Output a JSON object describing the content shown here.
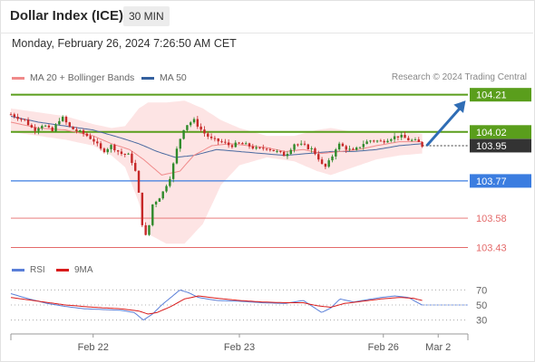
{
  "header": {
    "title": "Dollar Index (ICE)",
    "timeframe": "30 MIN",
    "datetime": "Monday, February 26, 2024 7:26:50 AM CET",
    "credit": "Research © 2024 Trading Central"
  },
  "legend": {
    "ma20": "MA 20 + Bollinger Bands",
    "ma50": "MA 50",
    "rsi": "RSI",
    "rsi_ma": "9MA"
  },
  "colors": {
    "resistance": "#5a9e1c",
    "support": "#3b7de0",
    "level_minor": "#e46a6a",
    "current": "#333333",
    "bollinger_fill": "#fde4e4",
    "ma20": "#f08a8a",
    "ma50": "#4a6aa0",
    "bull": "#2f8a2a",
    "bear": "#c62828",
    "rsi": "#5a7fd8",
    "rsi_ma": "#d81b1b",
    "arrow": "#2f6db5"
  },
  "chart_data": [
    {
      "type": "candlestick",
      "ylim": [
        103.4,
        104.25
      ],
      "xlim": [
        0,
        100
      ],
      "x_ticks": [
        {
          "x": 18,
          "label": "Feb 22"
        },
        {
          "x": 50,
          "label": "Feb 23"
        },
        {
          "x": 81.5,
          "label": "Feb 26"
        },
        {
          "x": 93.5,
          "label": "Mar 2"
        }
      ],
      "levels": [
        {
          "value": 104.21,
          "label": "104.21",
          "kind": "resistance"
        },
        {
          "value": 104.02,
          "label": "104.02",
          "kind": "resistance"
        },
        {
          "value": 103.95,
          "label": "103.95",
          "kind": "current"
        },
        {
          "value": 103.77,
          "label": "103.77",
          "kind": "support"
        },
        {
          "value": 103.58,
          "label": "103.58",
          "kind": "minor"
        },
        {
          "value": 103.43,
          "label": "103.43",
          "kind": "minor"
        }
      ],
      "forecast_arrow": {
        "x0": 91,
        "y0": 103.95,
        "x1": 99.5,
        "y1": 104.18
      },
      "ohlc_anchors": [
        [
          0,
          104.11
        ],
        [
          3,
          104.08
        ],
        [
          5,
          104.03
        ],
        [
          7,
          104.06
        ],
        [
          9,
          104.02
        ],
        [
          11,
          104.1
        ],
        [
          13,
          104.04
        ],
        [
          16,
          104.01
        ],
        [
          18,
          103.98
        ],
        [
          20,
          103.92
        ],
        [
          22,
          103.95
        ],
        [
          24,
          103.91
        ],
        [
          26,
          103.9
        ],
        [
          27.5,
          103.8
        ],
        [
          29,
          103.5
        ],
        [
          29.8,
          103.48
        ],
        [
          31,
          103.65
        ],
        [
          33,
          103.7
        ],
        [
          35,
          103.8
        ],
        [
          36.5,
          103.95
        ],
        [
          38,
          104.05
        ],
        [
          40,
          104.08
        ],
        [
          42,
          104.02
        ],
        [
          44,
          103.98
        ],
        [
          46,
          103.97
        ],
        [
          48,
          103.95
        ],
        [
          50,
          103.96
        ],
        [
          52,
          103.95
        ],
        [
          54,
          103.93
        ],
        [
          56,
          103.94
        ],
        [
          58,
          103.92
        ],
        [
          60,
          103.9
        ],
        [
          62,
          103.96
        ],
        [
          64,
          103.95
        ],
        [
          66,
          103.93
        ],
        [
          67.5,
          103.88
        ],
        [
          68.5,
          103.83
        ],
        [
          70,
          103.88
        ],
        [
          71.5,
          103.96
        ],
        [
          73,
          103.94
        ],
        [
          75,
          103.92
        ],
        [
          77,
          103.96
        ],
        [
          79,
          103.98
        ],
        [
          81,
          103.97
        ],
        [
          83,
          103.99
        ],
        [
          85,
          104.0
        ],
        [
          87,
          103.98
        ],
        [
          89,
          103.97
        ],
        [
          90,
          103.95
        ]
      ],
      "ma20_anchors": [
        [
          0,
          104.07
        ],
        [
          6,
          104.04
        ],
        [
          12,
          104.03
        ],
        [
          18,
          104.0
        ],
        [
          22,
          103.96
        ],
        [
          26,
          103.93
        ],
        [
          29,
          103.88
        ],
        [
          33,
          103.8
        ],
        [
          37,
          103.82
        ],
        [
          40,
          103.9
        ],
        [
          44,
          103.95
        ],
        [
          48,
          103.96
        ],
        [
          52,
          103.95
        ],
        [
          56,
          103.94
        ],
        [
          60,
          103.92
        ],
        [
          64,
          103.93
        ],
        [
          68,
          103.91
        ],
        [
          72,
          103.92
        ],
        [
          76,
          103.93
        ],
        [
          80,
          103.95
        ],
        [
          85,
          103.97
        ],
        [
          90,
          103.97
        ]
      ],
      "ma50_anchors": [
        [
          0,
          104.1
        ],
        [
          6,
          104.07
        ],
        [
          12,
          104.05
        ],
        [
          18,
          104.03
        ],
        [
          24,
          103.99
        ],
        [
          28,
          103.96
        ],
        [
          32,
          103.92
        ],
        [
          36,
          103.89
        ],
        [
          40,
          103.9
        ],
        [
          45,
          103.93
        ],
        [
          50,
          103.92
        ],
        [
          55,
          103.91
        ],
        [
          60,
          103.9
        ],
        [
          65,
          103.91
        ],
        [
          70,
          103.92
        ],
        [
          75,
          103.92
        ],
        [
          80,
          103.93
        ],
        [
          85,
          103.95
        ],
        [
          90,
          103.96
        ]
      ],
      "bollinger_upper": [
        [
          0,
          104.14
        ],
        [
          6,
          104.12
        ],
        [
          12,
          104.1
        ],
        [
          18,
          104.06
        ],
        [
          22,
          104.04
        ],
        [
          25,
          104.05
        ],
        [
          28,
          104.14
        ],
        [
          30,
          104.17
        ],
        [
          34,
          104.17
        ],
        [
          38,
          104.18
        ],
        [
          42,
          104.14
        ],
        [
          46,
          104.08
        ],
        [
          50,
          104.04
        ],
        [
          56,
          104.0
        ],
        [
          62,
          104.0
        ],
        [
          67,
          104.03
        ],
        [
          70,
          104.04
        ],
        [
          75,
          104.02
        ],
        [
          80,
          104.02
        ],
        [
          85,
          104.02
        ],
        [
          90,
          104.01
        ]
      ],
      "bollinger_lower": [
        [
          0,
          104.02
        ],
        [
          6,
          104.0
        ],
        [
          12,
          103.98
        ],
        [
          18,
          103.95
        ],
        [
          22,
          103.9
        ],
        [
          25,
          103.84
        ],
        [
          28,
          103.66
        ],
        [
          30,
          103.5
        ],
        [
          34,
          103.45
        ],
        [
          38,
          103.45
        ],
        [
          42,
          103.55
        ],
        [
          46,
          103.75
        ],
        [
          50,
          103.85
        ],
        [
          56,
          103.89
        ],
        [
          62,
          103.87
        ],
        [
          67,
          103.82
        ],
        [
          70,
          103.8
        ],
        [
          75,
          103.84
        ],
        [
          80,
          103.88
        ],
        [
          85,
          103.9
        ],
        [
          90,
          103.91
        ]
      ]
    },
    {
      "type": "line",
      "title": "RSI",
      "ylim": [
        20,
        80
      ],
      "y_ticks": [
        70,
        50,
        30
      ],
      "series": [
        {
          "name": "RSI",
          "anchors": [
            [
              0,
              65
            ],
            [
              4,
              58
            ],
            [
              8,
              52
            ],
            [
              12,
              48
            ],
            [
              16,
              45
            ],
            [
              20,
              44
            ],
            [
              24,
              43
            ],
            [
              27,
              40
            ],
            [
              29,
              30
            ],
            [
              31,
              38
            ],
            [
              33,
              50
            ],
            [
              35,
              60
            ],
            [
              37,
              70
            ],
            [
              39,
              66
            ],
            [
              41,
              60
            ],
            [
              45,
              56
            ],
            [
              50,
              55
            ],
            [
              55,
              53
            ],
            [
              60,
              52
            ],
            [
              64,
              56
            ],
            [
              66,
              48
            ],
            [
              68,
              40
            ],
            [
              70,
              46
            ],
            [
              72,
              58
            ],
            [
              75,
              54
            ],
            [
              78,
              57
            ],
            [
              81,
              60
            ],
            [
              84,
              62
            ],
            [
              87,
              60
            ],
            [
              89,
              53
            ],
            [
              90,
              50
            ]
          ]
        },
        {
          "name": "9MA",
          "anchors": [
            [
              0,
              60
            ],
            [
              6,
              55
            ],
            [
              12,
              50
            ],
            [
              18,
              47
            ],
            [
              24,
              45
            ],
            [
              28,
              42
            ],
            [
              30,
              38
            ],
            [
              32,
              40
            ],
            [
              35,
              48
            ],
            [
              38,
              58
            ],
            [
              41,
              62
            ],
            [
              45,
              59
            ],
            [
              50,
              56
            ],
            [
              55,
              54
            ],
            [
              60,
              53
            ],
            [
              64,
              53
            ],
            [
              67,
              49
            ],
            [
              70,
              47
            ],
            [
              73,
              52
            ],
            [
              77,
              55
            ],
            [
              81,
              58
            ],
            [
              85,
              60
            ],
            [
              88,
              59
            ],
            [
              90,
              56
            ]
          ]
        }
      ]
    }
  ]
}
